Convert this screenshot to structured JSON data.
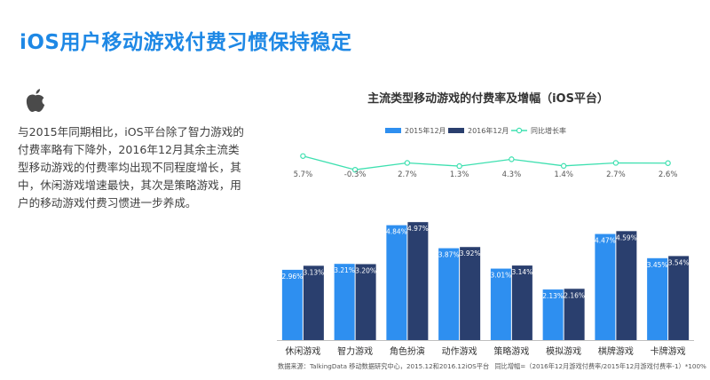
{
  "page": {
    "title": "iOS用户移动游戏付费习惯保持稳定",
    "description": "与2015年同期相比，iOS平台除了智力游戏的付费率略有下降外，2016年12月其余主流类型移动游戏的付费率均出现不同程度增长，其中，休闲游戏增速最快，其次是策略游戏，用户的移动游戏付费习惯进一步养成。",
    "logo_icon": "apple-logo-icon",
    "source_note": "数据来源：TalkingData 移动数据研究中心，2015.12和2016.12iOS平台",
    "formula_note": "同比增幅=（2016年12月游戏付费率/2015年12月游戏付费率-1）*100%"
  },
  "colors": {
    "title": "#1e88e5",
    "bar_2015": "#2e8ff0",
    "bar_2016": "#2a3f6e",
    "growth_line": "#3ee0b0"
  },
  "chart_data": {
    "type": "bar",
    "title": "主流类型移动游戏的付费率及增幅（iOS平台）",
    "legend_position": "top",
    "categories": [
      "休闲游戏",
      "智力游戏",
      "角色扮演",
      "动作游戏",
      "策略游戏",
      "模拟游戏",
      "棋牌游戏",
      "卡牌游戏"
    ],
    "series": [
      {
        "name": "2015年12月",
        "values": [
          2.96,
          3.21,
          4.84,
          3.87,
          3.01,
          2.13,
          4.47,
          3.45
        ],
        "labels": [
          "2.96%",
          "3.21%",
          "4.84%",
          "3.87%",
          "3.01%",
          "2.13%",
          "4.47%",
          "3.45%"
        ]
      },
      {
        "name": "2016年12月",
        "values": [
          3.13,
          3.2,
          4.97,
          3.92,
          3.14,
          2.16,
          4.59,
          3.54
        ],
        "labels": [
          "3.13%",
          "3.20%",
          "4.97%",
          "3.92%",
          "3.14%",
          "2.16%",
          "4.59%",
          "3.54%"
        ]
      }
    ],
    "growth": {
      "name": "同比增长率",
      "values": [
        5.7,
        -0.3,
        2.7,
        1.3,
        4.3,
        1.4,
        2.7,
        2.6
      ],
      "labels": [
        "5.7%",
        "-0.3%",
        "2.7%",
        "1.3%",
        "4.3%",
        "1.4%",
        "2.7%",
        "2.6%"
      ]
    },
    "ylim": [
      0,
      5.5
    ],
    "growth_ylim": [
      -1,
      6
    ],
    "grid": false
  }
}
